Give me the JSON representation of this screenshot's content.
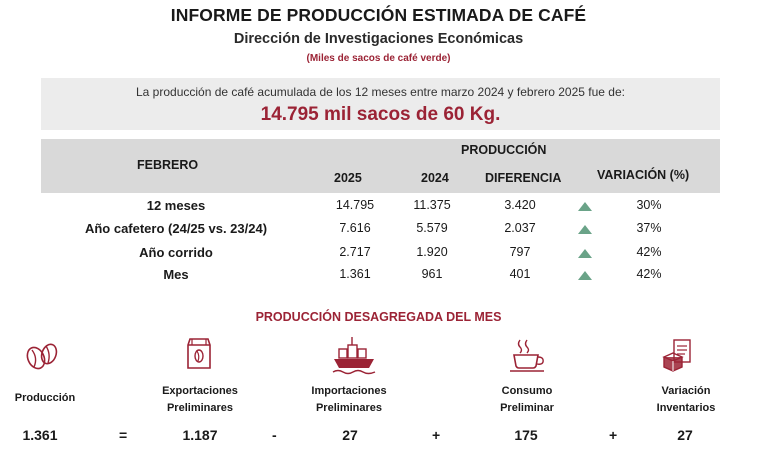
{
  "header": {
    "title": "INFORME DE PRODUCCIÓN ESTIMADA DE CAFÉ",
    "subtitle": "Dirección de Investigaciones Económicas",
    "units": "(Miles de sacos de café verde)"
  },
  "summary": {
    "text": "La producción de café acumulada de los 12 meses entre marzo 2024 y febrero 2025 fue de:",
    "value": "14.795 mil sacos de 60 Kg."
  },
  "table": {
    "period_header": "FEBRERO",
    "group_header": "PRODUCCIÓN",
    "columns": [
      "2025",
      "2024",
      "DIFERENCIA",
      "VARIACIÓN (%)"
    ],
    "rows": [
      {
        "label": "12 meses",
        "v2025": "14.795",
        "v2024": "11.375",
        "diff": "3.420",
        "trend": "up",
        "var": "30%"
      },
      {
        "label": "Año cafetero (24/25 vs. 23/24)",
        "v2025": "7.616",
        "v2024": "5.579",
        "diff": "2.037",
        "trend": "up",
        "var": "37%"
      },
      {
        "label": "Año corrido",
        "v2025": "2.717",
        "v2024": "1.920",
        "diff": "797",
        "trend": "up",
        "var": "42%"
      },
      {
        "label": "Mes",
        "v2025": "1.361",
        "v2024": "961",
        "diff": "401",
        "trend": "up",
        "var": "42%"
      }
    ],
    "trend_color": "#6aa388"
  },
  "breakdown": {
    "title": "PRODUCCIÓN DESAGREGADA DEL MES",
    "accent_color": "#9b2335",
    "components": [
      {
        "label_1": "Producción",
        "label_2": "",
        "value": "1.361",
        "icon": "coffee-beans-icon"
      },
      {
        "label_1": "Exportaciones",
        "label_2": "Preliminares",
        "value": "1.187",
        "icon": "coffee-bag-icon"
      },
      {
        "label_1": "Importaciones",
        "label_2": "Preliminares",
        "value": "27",
        "icon": "cargo-ship-icon"
      },
      {
        "label_1": "Consumo",
        "label_2": "Preliminar",
        "value": "175",
        "icon": "coffee-cup-icon"
      },
      {
        "label_1": "Variación",
        "label_2": "Inventarios",
        "value": "27",
        "icon": "inventory-icon"
      }
    ],
    "operators": [
      "=",
      "-",
      "+",
      "+"
    ]
  }
}
